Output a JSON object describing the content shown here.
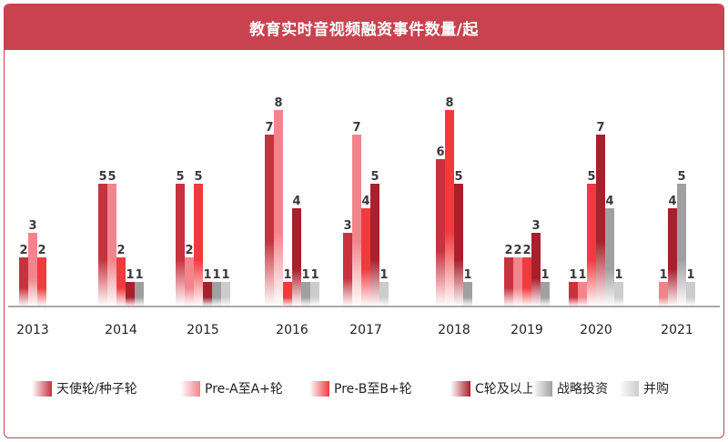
{
  "title": "教育实时音视频融资事件数量/起",
  "chart_data": {
    "type": "bar",
    "categories": [
      "2013",
      "2014",
      "2015",
      "2016",
      "2017",
      "2018",
      "2019",
      "2020",
      "2021"
    ],
    "series": [
      {
        "name": "天使轮/种子轮",
        "values": [
          2,
          5,
          5,
          7,
          3,
          6,
          2,
          1,
          0
        ],
        "color": "#c8323e"
      },
      {
        "name": "Pre-A至A+轮",
        "values": [
          3,
          5,
          2,
          8,
          7,
          0,
          2,
          1,
          1
        ],
        "color": "#f2848c"
      },
      {
        "name": "Pre-B至B+轮",
        "values": [
          2,
          2,
          5,
          1,
          4,
          8,
          2,
          5,
          0
        ],
        "color": "#f03a3e"
      },
      {
        "name": "C轮及以上",
        "values": [
          0,
          1,
          1,
          4,
          5,
          5,
          3,
          7,
          4
        ],
        "color": "#a8202c"
      },
      {
        "name": "战略投资",
        "values": [
          0,
          1,
          1,
          1,
          0,
          1,
          1,
          4,
          5
        ],
        "color": "#a0a0a0"
      },
      {
        "name": "并购",
        "values": [
          0,
          0,
          1,
          1,
          1,
          0,
          0,
          1,
          1
        ],
        "color": "#cccccc"
      }
    ],
    "ylim": [
      0,
      8
    ],
    "grid": false,
    "legend_position": "bottom"
  }
}
